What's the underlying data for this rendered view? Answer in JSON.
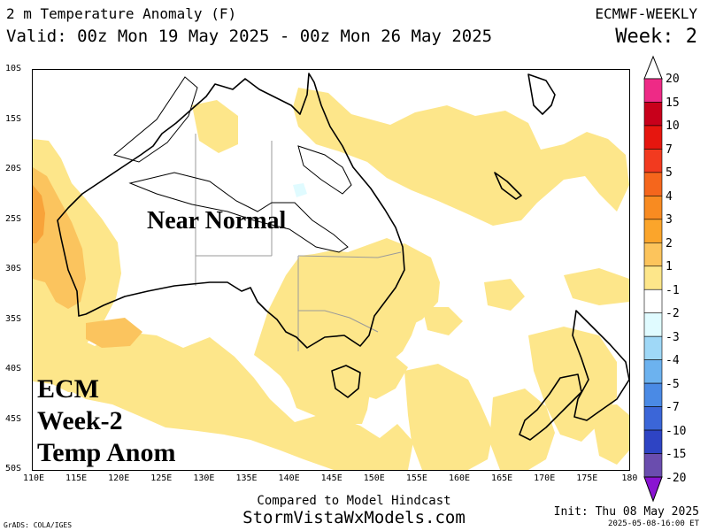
{
  "header": {
    "title": "2 m Temperature Anomaly (F)",
    "valid": "Valid: 00z Mon 19 May 2025 - 00z Mon 26 May 2025",
    "model": "ECMWF-WEEKLY",
    "week": "Week: 2"
  },
  "map": {
    "lat_labels": [
      "10S",
      "15S",
      "20S",
      "25S",
      "30S",
      "35S",
      "40S",
      "45S",
      "50S"
    ],
    "lon_labels": [
      "110E",
      "115E",
      "120E",
      "125E",
      "130E",
      "135E",
      "140E",
      "145E",
      "150E",
      "155E",
      "160E",
      "165E",
      "170E",
      "175E",
      "180"
    ],
    "region_annotation": "Near Normal",
    "stamp_lines": [
      "ECM",
      "Week-2",
      "Temp Anom"
    ],
    "colors": {
      "anom_1_2": "#fde68a",
      "anom_2_3": "#fbc45e",
      "anom_3_4": "#f8a33a",
      "anom_-1_-2": "#e0fbff"
    }
  },
  "colorbar": {
    "labels": [
      "20",
      "15",
      "10",
      "7",
      "5",
      "4",
      "3",
      "2",
      "1",
      "-1",
      "-2",
      "-3",
      "-4",
      "-5",
      "-7",
      "-10",
      "-15",
      "-20"
    ],
    "colors": [
      "#ee2a86",
      "#c8001b",
      "#e6160f",
      "#f23a1f",
      "#f5661c",
      "#f88b21",
      "#fba52b",
      "#fcc45c",
      "#fde68a",
      "#ffffff",
      "#e0fbff",
      "#9fd8f7",
      "#6cb2ef",
      "#4a8ae5",
      "#3b66d8",
      "#2e44c4",
      "#6a4dae",
      "#a017dc",
      "#8a14d2"
    ]
  },
  "footer": {
    "compare": "Compared to Model Hindcast",
    "site": "StormVistaWxModels.com",
    "init": "Init: Thu 08 May 2025",
    "timestamp": "2025-05-08-16:00 ET",
    "credit": "GrADS: COLA/IGES"
  }
}
